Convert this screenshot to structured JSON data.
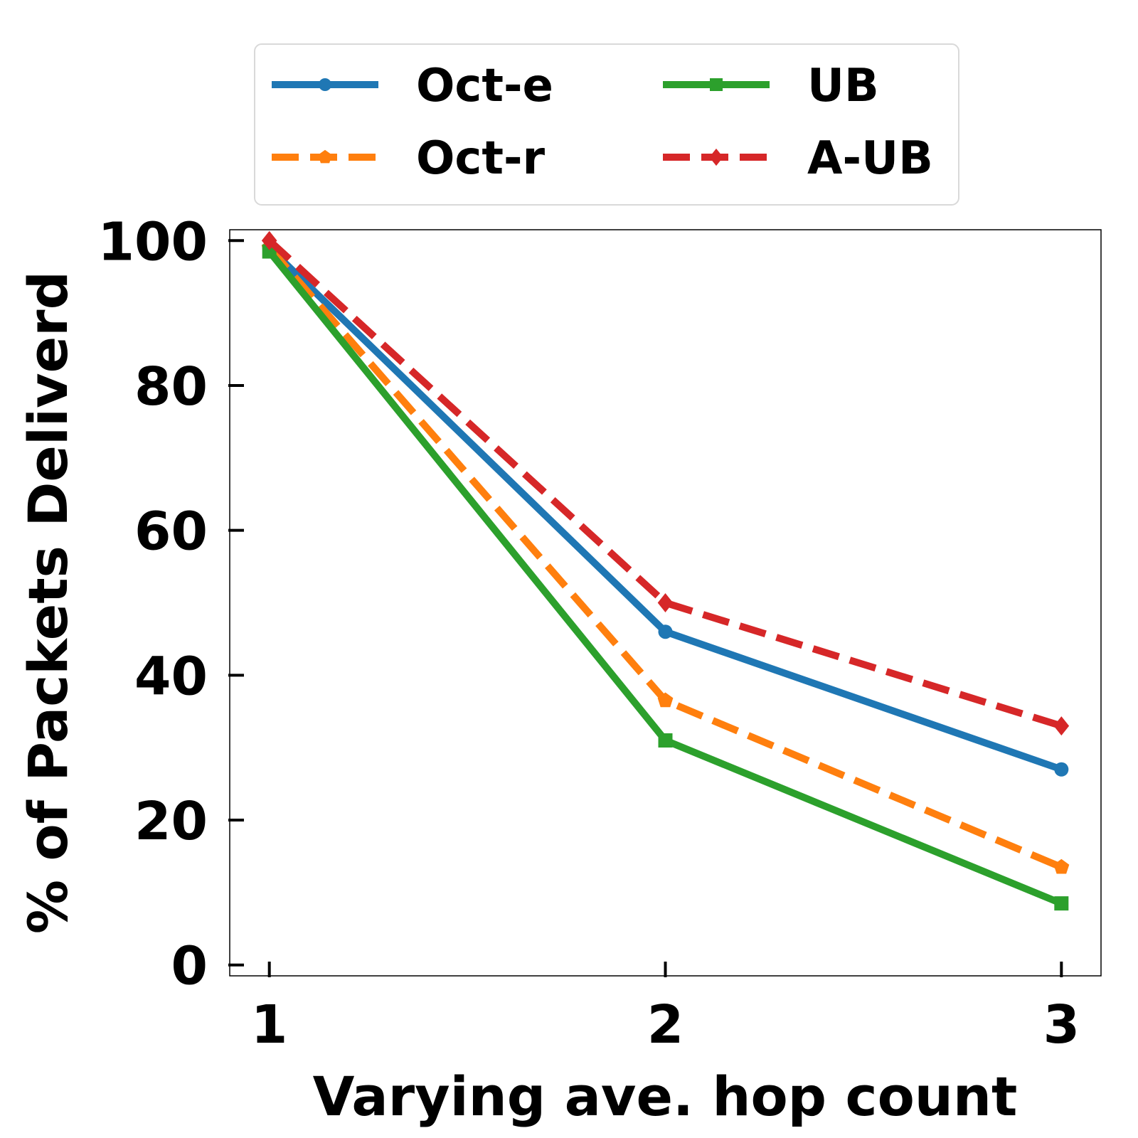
{
  "chart_data": {
    "type": "line",
    "xlabel": "Varying ave. hop count",
    "ylabel": "% of Packets Deliverd",
    "x": [
      1,
      2,
      3
    ],
    "xlim": [
      0.9,
      3.1
    ],
    "ylim": [
      -1.5,
      101.5
    ],
    "xticks": [
      1,
      2,
      3
    ],
    "yticks": [
      0,
      20,
      40,
      60,
      80,
      100
    ],
    "grid": false,
    "legend": {
      "position": "top-outside",
      "columns": 2
    },
    "series": [
      {
        "name": "Oct-e",
        "values": [
          99.0,
          46.0,
          27.0
        ],
        "color": "#1f77b4",
        "dash": "solid",
        "marker": "circle"
      },
      {
        "name": "Oct-r",
        "values": [
          99.0,
          36.5,
          13.5
        ],
        "color": "#ff7f0e",
        "dash": "dashed",
        "marker": "pentagon"
      },
      {
        "name": "UB",
        "values": [
          98.5,
          31.0,
          8.5
        ],
        "color": "#2ca02c",
        "dash": "solid",
        "marker": "square"
      },
      {
        "name": "A-UB",
        "values": [
          100.0,
          50.0,
          33.0
        ],
        "color": "#d62728",
        "dash": "dashed",
        "marker": "diamond"
      }
    ]
  }
}
